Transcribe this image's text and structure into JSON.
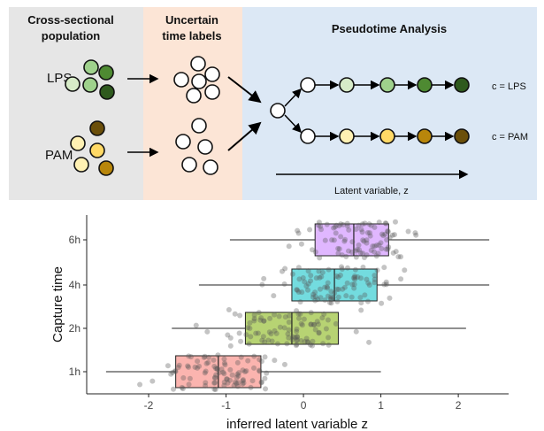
{
  "diagram": {
    "panel1_title_line1": "Cross-sectional",
    "panel1_title_line2": "population",
    "panel2_title_line1": "Uncertain",
    "panel2_title_line2": "time labels",
    "panel3_title": "Pseudotime Analysis",
    "row_label_lps": "LPS",
    "row_label_pam": "PAM",
    "trajectory_label_lps": "c = LPS",
    "trajectory_label_pam": "c = PAM",
    "axis_caption": "Latent variable, z",
    "colors": {
      "panel1_bg": "#e6e6e6",
      "panel2_bg": "#fce5d6",
      "panel3_bg": "#dce8f5",
      "lps_1": "#d7ebc8",
      "lps_2": "#9fd18c",
      "lps_3": "#4e8a32",
      "lps_4": "#2f5a1e",
      "pam_1": "#fff1b3",
      "pam_2": "#ffd966",
      "pam_3": "#b8860b",
      "pam_4": "#6b4f0a"
    }
  },
  "chart_data": {
    "type": "boxplot",
    "xlabel": "inferred latent variable z",
    "ylabel": "Capture time",
    "xlim": [
      -2.8,
      2.65
    ],
    "x_ticks": [
      -2,
      -1,
      0,
      1,
      2
    ],
    "x_tick_labels": [
      "-2",
      "-1",
      "0",
      "1",
      "2"
    ],
    "categories": [
      "1h",
      "2h",
      "4h",
      "6h"
    ],
    "boxes": [
      {
        "label": "1h",
        "min": -2.55,
        "q1": -1.65,
        "median": -1.1,
        "q3": -0.55,
        "max": 1.0,
        "color": "#f8766d"
      },
      {
        "label": "2h",
        "min": -1.7,
        "q1": -0.75,
        "median": -0.15,
        "q3": 0.45,
        "max": 2.1,
        "color": "#7cae00"
      },
      {
        "label": "4h",
        "min": -1.35,
        "q1": -0.15,
        "median": 0.4,
        "q3": 0.95,
        "max": 2.4,
        "color": "#00bfc4"
      },
      {
        "label": "6h",
        "min": -0.95,
        "q1": 0.15,
        "median": 0.65,
        "q3": 1.1,
        "max": 2.4,
        "color": "#c77cff"
      }
    ],
    "points_per_group": 95,
    "grid": false
  }
}
